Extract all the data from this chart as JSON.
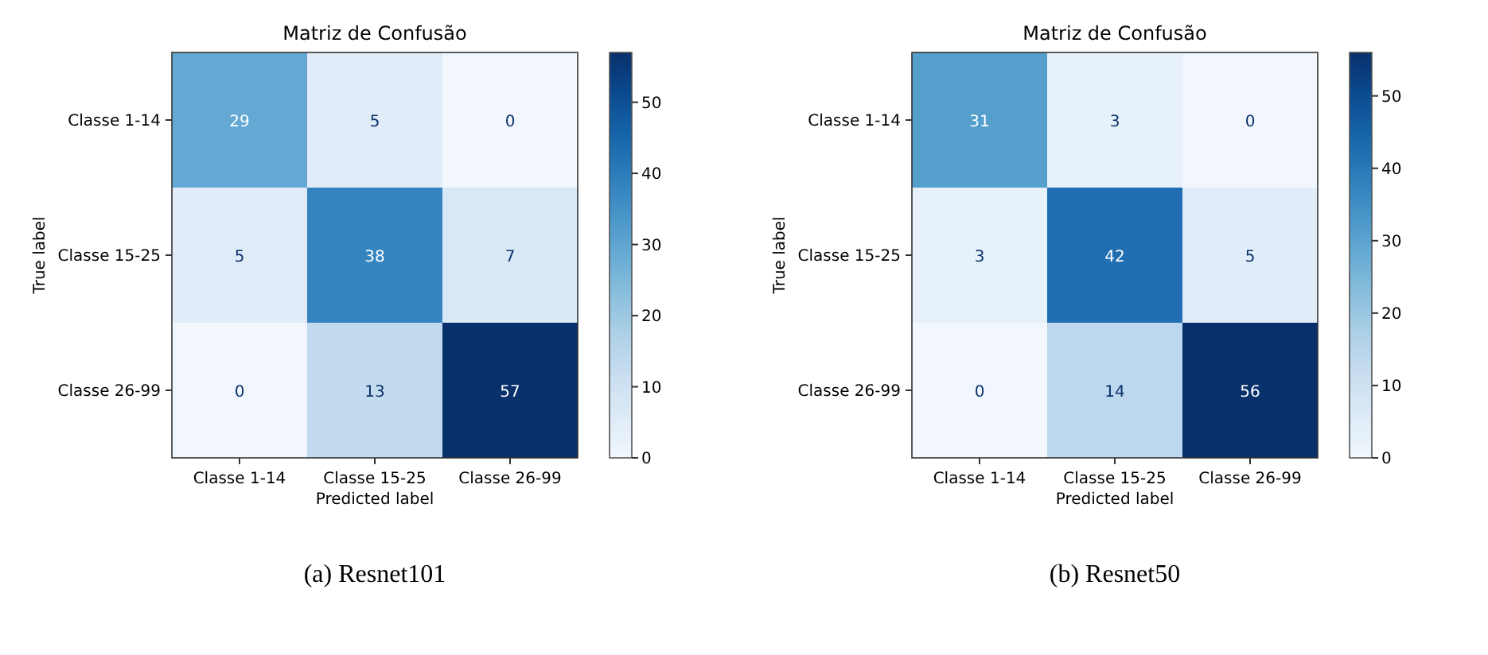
{
  "chart_data": [
    {
      "type": "heatmap",
      "title": "Matriz de Confusão",
      "xlabel": "Predicted label",
      "ylabel": "True label",
      "categories": [
        "Classe 1-14",
        "Classe 15-25",
        "Classe 26-99"
      ],
      "y_categories": [
        "Classe 1-14",
        "Classe 15-25",
        "Classe 26-99"
      ],
      "cells": [
        [
          29,
          5,
          0
        ],
        [
          5,
          38,
          7
        ],
        [
          0,
          13,
          57
        ]
      ],
      "data_labels": true,
      "clim": [
        0,
        57
      ],
      "cticks": [
        0,
        10,
        20,
        30,
        40,
        50
      ],
      "annotations": [
        "(a)  Resnet101"
      ]
    },
    {
      "type": "heatmap",
      "title": "Matriz de Confusão",
      "xlabel": "Predicted label",
      "ylabel": "True label",
      "categories": [
        "Classe 1-14",
        "Classe 15-25",
        "Classe 26-99"
      ],
      "y_categories": [
        "Classe 1-14",
        "Classe 15-25",
        "Classe 26-99"
      ],
      "cells": [
        [
          31,
          3,
          0
        ],
        [
          3,
          42,
          5
        ],
        [
          0,
          14,
          56
        ]
      ],
      "data_labels": true,
      "clim": [
        0,
        56
      ],
      "cticks": [
        0,
        10,
        20,
        30,
        40,
        50
      ],
      "annotations": [
        "(b)  Resnet50"
      ]
    }
  ]
}
